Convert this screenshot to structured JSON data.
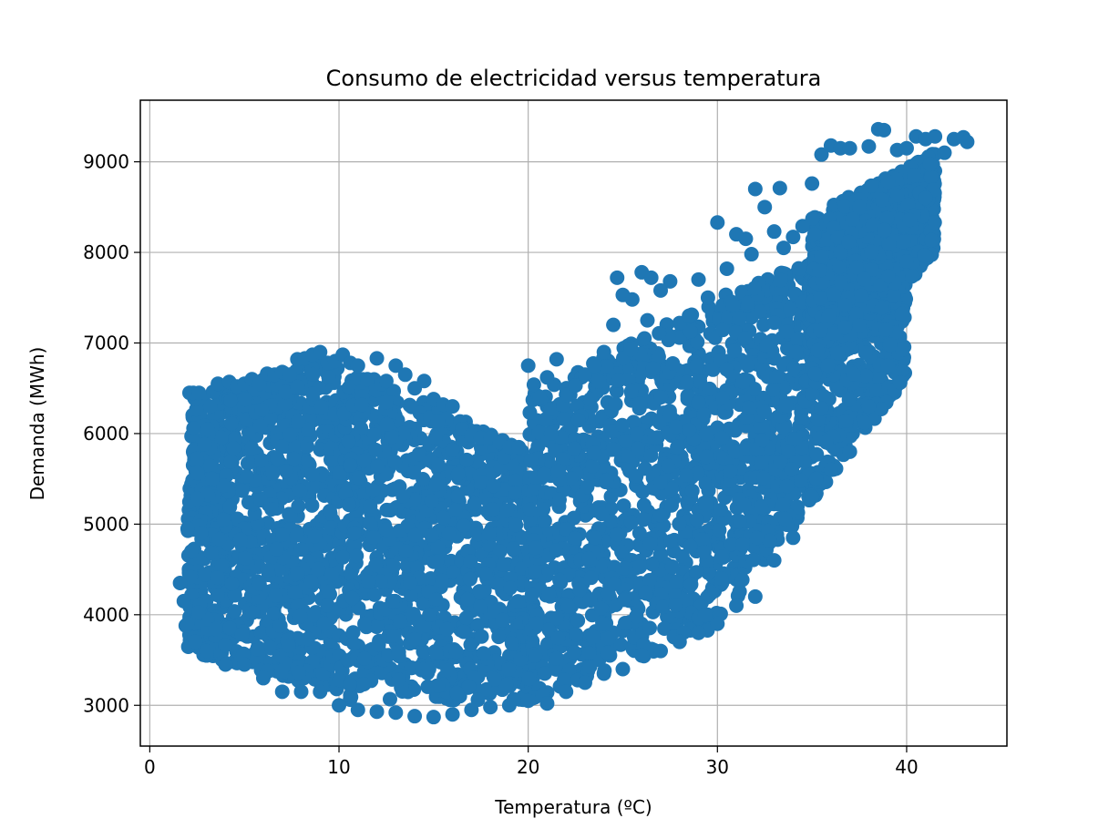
{
  "chart_data": {
    "type": "scatter",
    "title": "Consumo de electricidad versus temperatura",
    "xlabel": "Temperatura (ºC)",
    "ylabel": "Demanda (MWh)",
    "xlim": [
      -0.5,
      45.3
    ],
    "ylim": [
      2550,
      9680
    ],
    "xticks": [
      0,
      10,
      20,
      30,
      40
    ],
    "yticks": [
      3000,
      4000,
      5000,
      6000,
      7000,
      8000,
      9000
    ],
    "xtick_labels": [
      "0",
      "10",
      "20",
      "30",
      "40"
    ],
    "ytick_labels": [
      "3000",
      "4000",
      "5000",
      "6000",
      "7000",
      "8000",
      "9000"
    ],
    "grid": true,
    "marker_color": "#1f77b4",
    "series": [
      {
        "x": [
          1.6,
          1.9,
          2.0,
          2.1,
          2.2,
          2.3,
          2.5,
          2.6,
          2.7,
          2.9,
          3.0,
          3.2,
          3.3,
          3.6,
          3.9,
          4.2,
          4.6,
          5.0,
          5.4,
          5.8,
          6.2,
          6.6,
          7.0,
          7.4,
          7.8,
          8.2,
          8.6,
          9.0,
          9.4,
          9.8,
          10.2,
          10.6,
          11.0,
          11.5,
          12.0,
          12.5,
          13.0,
          13.5,
          14.0,
          14.5,
          15.0,
          15.5,
          16.0,
          16.5,
          17.0,
          17.5,
          18.0,
          18.5,
          19.0,
          19.5,
          20.0,
          20.3,
          20.6,
          21.0,
          21.5,
          22.0,
          22.5,
          23.0,
          23.5,
          24.0,
          24.5,
          24.7,
          25.0,
          25.5,
          26.0,
          26.3,
          26.5,
          27.0,
          27.5,
          28.0,
          28.5,
          29.0,
          29.5,
          30.0,
          30.5,
          31.0,
          31.5,
          31.8,
          32.0,
          32.5,
          33.0,
          33.3,
          33.5,
          34.0,
          34.5,
          35.0,
          35.5,
          36.0,
          36.5,
          37.0,
          37.5,
          38.0,
          38.5,
          38.8,
          39.0,
          39.5,
          40.0,
          40.5,
          41.0,
          41.5,
          42.0,
          42.5,
          43.0,
          43.2,
          1.8,
          2.0,
          2.4,
          3.0,
          4.0,
          5.0,
          6.0,
          7.0,
          8.0,
          9.0,
          10.0,
          11.0,
          12.0,
          13.0,
          14.0,
          15.0,
          16.0,
          17.0,
          18.0,
          19.0,
          20.0,
          21.0,
          22.0,
          23.0,
          24.0,
          25.0,
          26.0,
          27.0,
          28.0,
          29.0,
          30.0,
          31.0,
          32.0,
          33.0,
          34.0,
          35.0,
          36.0,
          37.0,
          38.0,
          39.0,
          40.0,
          41.0
        ],
        "y": [
          4350,
          3880,
          4950,
          6450,
          4700,
          6450,
          5280,
          6450,
          4900,
          5880,
          3550,
          6300,
          5500,
          6550,
          5050,
          6570,
          6520,
          6550,
          6600,
          6550,
          6660,
          6650,
          6680,
          6650,
          6820,
          6830,
          6870,
          6900,
          6780,
          6800,
          6870,
          6780,
          6750,
          6600,
          6830,
          6580,
          6750,
          6650,
          6500,
          6580,
          6380,
          6320,
          6300,
          6050,
          5980,
          5950,
          5950,
          5900,
          5850,
          5850,
          6750,
          6540,
          6400,
          6620,
          6820,
          6430,
          6530,
          6650,
          6750,
          6900,
          7200,
          7720,
          7530,
          7480,
          7780,
          7250,
          7720,
          7580,
          7680,
          7220,
          7300,
          7700,
          7500,
          8330,
          7820,
          8200,
          8150,
          7980,
          8700,
          8500,
          8230,
          8710,
          8050,
          8170,
          8290,
          8760,
          9080,
          9180,
          9150,
          9150,
          8500,
          9170,
          9360,
          9350,
          8780,
          9130,
          9150,
          9280,
          9250,
          9280,
          9100,
          9250,
          9270,
          9220,
          4150,
          3900,
          3700,
          3600,
          3450,
          3450,
          3300,
          3150,
          3150,
          3150,
          3000,
          2950,
          2930,
          2920,
          2880,
          2870,
          2900,
          2950,
          2980,
          3000,
          3050,
          3020,
          3150,
          3250,
          3350,
          3400,
          3550,
          3600,
          3700,
          3800,
          3900,
          4100,
          4200,
          4600,
          4850,
          5300,
          5600,
          5800,
          6300,
          6750,
          7900,
          8600
        ]
      }
    ],
    "note_density_regions": [
      {
        "xmin": 2.0,
        "xmax": 10.0,
        "ymin_start": 3600,
        "ymin_end": 3150,
        "ymax_start": 6400,
        "ymax_end": 6850
      },
      {
        "xmin": 10.0,
        "xmax": 20.0,
        "ymin_start": 3050,
        "ymin_end": 3050,
        "ymax_start": 6800,
        "ymax_end": 5800
      },
      {
        "xmin": 20.0,
        "xmax": 30.0,
        "ymin_start": 3050,
        "ymin_end": 3850,
        "ymax_start": 6400,
        "ymax_end": 7500
      },
      {
        "xmin": 30.0,
        "xmax": 40.0,
        "ymin_start": 3900,
        "ymin_end": 6600,
        "ymax_start": 7500,
        "ymax_end": 8400
      },
      {
        "xmin": 35.0,
        "xmax": 41.5,
        "ymin_start": 6500,
        "ymin_end": 8000,
        "ymax_start": 8400,
        "ymax_end": 9100
      }
    ]
  }
}
